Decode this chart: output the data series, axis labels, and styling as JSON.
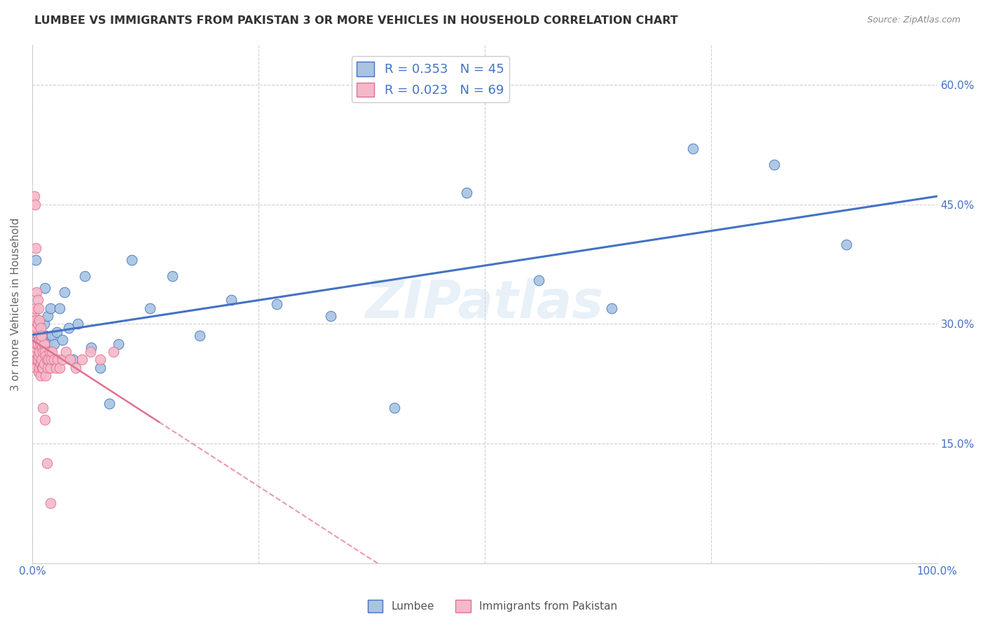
{
  "title": "LUMBEE VS IMMIGRANTS FROM PAKISTAN 3 OR MORE VEHICLES IN HOUSEHOLD CORRELATION CHART",
  "source": "Source: ZipAtlas.com",
  "ylabel": "3 or more Vehicles in Household",
  "x_min": 0.0,
  "x_max": 1.0,
  "y_min": 0.0,
  "y_max": 0.65,
  "x_ticks": [
    0.0,
    0.25,
    0.5,
    0.75,
    1.0
  ],
  "x_tick_labels": [
    "0.0%",
    "",
    "",
    "",
    "100.0%"
  ],
  "y_ticks": [
    0.0,
    0.15,
    0.3,
    0.45,
    0.6
  ],
  "y_tick_labels": [
    "",
    "15.0%",
    "30.0%",
    "45.0%",
    "60.0%"
  ],
  "lumbee_R": 0.353,
  "lumbee_N": 45,
  "pakistan_R": 0.023,
  "pakistan_N": 69,
  "lumbee_color": "#a8c4e0",
  "pakistan_color": "#f4b8c8",
  "lumbee_line_color": "#4472c4",
  "pakistan_line_color": "#e07090",
  "background_color": "#ffffff",
  "grid_color": "#d0d0d0",
  "watermark": "ZIPatlas",
  "lumbee_x": [
    0.003,
    0.004,
    0.005,
    0.006,
    0.007,
    0.008,
    0.009,
    0.01,
    0.011,
    0.012,
    0.013,
    0.014,
    0.015,
    0.016,
    0.017,
    0.018,
    0.02,
    0.022,
    0.024,
    0.027,
    0.03,
    0.033,
    0.036,
    0.04,
    0.045,
    0.05,
    0.058,
    0.065,
    0.075,
    0.085,
    0.095,
    0.11,
    0.13,
    0.155,
    0.185,
    0.22,
    0.27,
    0.33,
    0.4,
    0.48,
    0.56,
    0.64,
    0.73,
    0.82,
    0.9
  ],
  "lumbee_y": [
    0.295,
    0.38,
    0.28,
    0.305,
    0.26,
    0.3,
    0.265,
    0.28,
    0.27,
    0.275,
    0.3,
    0.345,
    0.285,
    0.275,
    0.31,
    0.265,
    0.32,
    0.285,
    0.275,
    0.29,
    0.32,
    0.28,
    0.34,
    0.295,
    0.255,
    0.3,
    0.36,
    0.27,
    0.245,
    0.2,
    0.275,
    0.38,
    0.32,
    0.36,
    0.285,
    0.33,
    0.325,
    0.31,
    0.195,
    0.465,
    0.355,
    0.32,
    0.52,
    0.5,
    0.4
  ],
  "pakistan_x": [
    0.001,
    0.001,
    0.002,
    0.002,
    0.002,
    0.003,
    0.003,
    0.003,
    0.004,
    0.004,
    0.004,
    0.005,
    0.005,
    0.005,
    0.006,
    0.006,
    0.006,
    0.007,
    0.007,
    0.007,
    0.008,
    0.008,
    0.008,
    0.009,
    0.009,
    0.009,
    0.01,
    0.01,
    0.011,
    0.011,
    0.012,
    0.012,
    0.013,
    0.013,
    0.014,
    0.015,
    0.015,
    0.016,
    0.017,
    0.018,
    0.019,
    0.02,
    0.021,
    0.022,
    0.024,
    0.026,
    0.028,
    0.03,
    0.033,
    0.037,
    0.042,
    0.048,
    0.055,
    0.064,
    0.075,
    0.09,
    0.002,
    0.003,
    0.004,
    0.005,
    0.006,
    0.007,
    0.008,
    0.009,
    0.01,
    0.012,
    0.014,
    0.016,
    0.02
  ],
  "pakistan_y": [
    0.295,
    0.26,
    0.315,
    0.27,
    0.25,
    0.32,
    0.29,
    0.265,
    0.305,
    0.27,
    0.245,
    0.295,
    0.275,
    0.255,
    0.3,
    0.275,
    0.255,
    0.285,
    0.26,
    0.24,
    0.28,
    0.265,
    0.245,
    0.275,
    0.25,
    0.235,
    0.28,
    0.255,
    0.27,
    0.245,
    0.265,
    0.245,
    0.275,
    0.25,
    0.265,
    0.26,
    0.235,
    0.255,
    0.245,
    0.255,
    0.265,
    0.245,
    0.255,
    0.265,
    0.255,
    0.245,
    0.255,
    0.245,
    0.255,
    0.265,
    0.255,
    0.245,
    0.255,
    0.265,
    0.255,
    0.265,
    0.46,
    0.45,
    0.395,
    0.34,
    0.33,
    0.32,
    0.305,
    0.295,
    0.285,
    0.195,
    0.18,
    0.125,
    0.075
  ]
}
